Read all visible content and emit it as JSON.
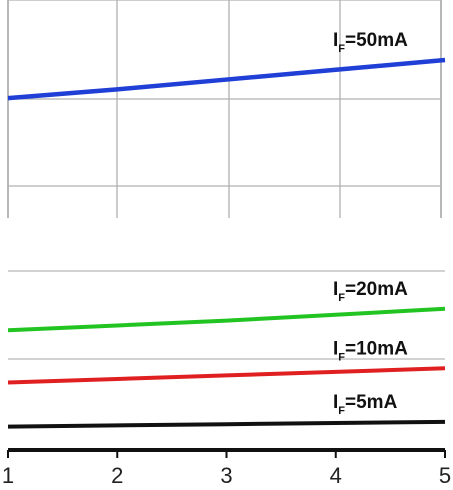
{
  "chart_data": [
    {
      "type": "line",
      "panel": "upper",
      "xlim": [
        1,
        5
      ],
      "ylim": [
        0,
        1
      ],
      "grid": true,
      "series": [
        {
          "name": "I_F=50mA",
          "color": "#1f3fd6",
          "x": [
            1,
            2,
            3,
            4,
            5
          ],
          "y": [
            0.55,
            0.59,
            0.635,
            0.68,
            0.725
          ]
        }
      ],
      "annotations": [
        {
          "series": "I_F=50mA",
          "main": "I",
          "sub": "F",
          "rest": "=50mA",
          "position": "above-right"
        }
      ]
    },
    {
      "type": "line",
      "panel": "lower",
      "xlim": [
        1,
        5
      ],
      "ylim": [
        0,
        1
      ],
      "xticks": [
        1,
        2,
        3,
        4,
        5
      ],
      "grid": true,
      "series": [
        {
          "name": "I_F=20mA",
          "color": "#22c422",
          "x": [
            1,
            2,
            3,
            4,
            5
          ],
          "y": [
            0.6,
            0.62,
            0.64,
            0.665,
            0.69
          ]
        },
        {
          "name": "I_F=10mA",
          "color": "#e02020",
          "x": [
            1,
            2,
            3,
            4,
            5
          ],
          "y": [
            0.38,
            0.395,
            0.41,
            0.425,
            0.44
          ]
        },
        {
          "name": "I_F=5mA",
          "color": "#111111",
          "x": [
            1,
            2,
            3,
            4,
            5
          ],
          "y": [
            0.195,
            0.2,
            0.205,
            0.21,
            0.215
          ]
        }
      ],
      "annotations": [
        {
          "series": "I_F=20mA",
          "main": "I",
          "sub": "F",
          "rest": "=20mA",
          "position": "above-right"
        },
        {
          "series": "I_F=10mA",
          "main": "I",
          "sub": "F",
          "rest": "=10mA",
          "position": "above-right"
        },
        {
          "series": "I_F=5mA",
          "main": "I",
          "sub": "F",
          "rest": "=5mA",
          "position": "above-right"
        }
      ]
    }
  ]
}
